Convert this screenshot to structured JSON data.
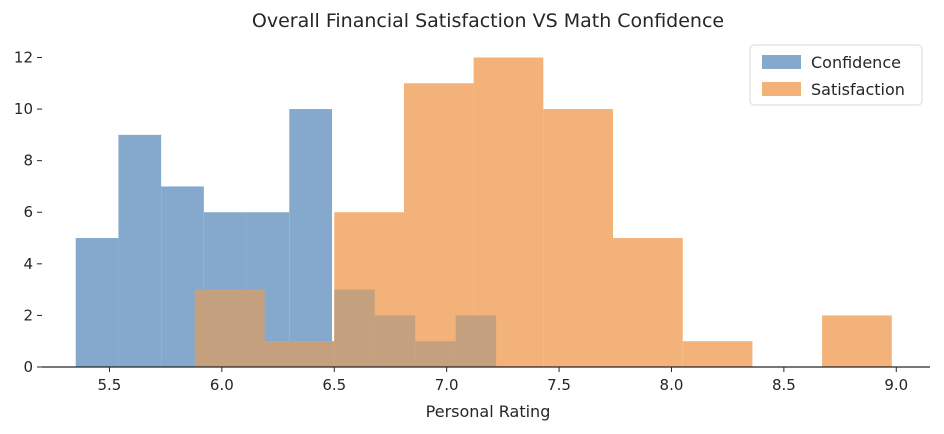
{
  "chart_data": {
    "type": "bar",
    "subtype": "histogram-overlay",
    "title": "Overall Financial Satisfaction VS Math Confidence",
    "xlabel": "Personal Rating",
    "ylabel": "",
    "xlim": [
      5.2,
      9.15
    ],
    "ylim": [
      0,
      12.6
    ],
    "xticks": [
      "5.5",
      "6.0",
      "6.5",
      "7.0",
      "7.5",
      "8.0",
      "8.5",
      "9.0"
    ],
    "yticks": [
      "0",
      "2",
      "4",
      "6",
      "8",
      "10",
      "12"
    ],
    "grid": false,
    "legend_position": "top-right",
    "series": [
      {
        "name": "Confidence",
        "color": "#84a9cd",
        "opacity": 0.85,
        "bins": [
          {
            "x0": 5.35,
            "x1": 5.54,
            "value": 5
          },
          {
            "x0": 5.54,
            "x1": 5.73,
            "value": 9
          },
          {
            "x0": 5.73,
            "x1": 5.92,
            "value": 7
          },
          {
            "x0": 5.92,
            "x1": 6.11,
            "value": 6
          },
          {
            "x0": 6.11,
            "x1": 6.3,
            "value": 6
          },
          {
            "x0": 6.3,
            "x1": 6.49,
            "value": 10
          }
        ]
      },
      {
        "name": "Satisfaction",
        "color": "#f2b27a",
        "opacity": 0.8,
        "bins": [
          {
            "x0": 5.88,
            "x1": 6.19,
            "value": 3
          },
          {
            "x0": 6.19,
            "x1": 6.5,
            "value": 1
          },
          {
            "x0": 6.5,
            "x1": 6.81,
            "value": 6
          },
          {
            "x0": 6.81,
            "x1": 7.12,
            "value": 11
          },
          {
            "x0": 7.12,
            "x1": 7.43,
            "value": 12
          },
          {
            "x0": 7.43,
            "x1": 7.74,
            "value": 10
          },
          {
            "x0": 7.74,
            "x1": 8.05,
            "value": 5
          },
          {
            "x0": 8.05,
            "x1": 8.36,
            "value": 1
          },
          {
            "x0": 8.36,
            "x1": 8.67,
            "value": 0
          },
          {
            "x0": 8.67,
            "x1": 8.98,
            "value": 2
          }
        ]
      }
    ],
    "overlap_bins": [
      {
        "x0": 5.88,
        "x1": 6.19,
        "value": 3
      },
      {
        "x0": 6.19,
        "x1": 6.5,
        "value": 1
      },
      {
        "x0": 6.5,
        "x1": 6.68,
        "value": 3
      },
      {
        "x0": 6.68,
        "x1": 6.86,
        "value": 2
      },
      {
        "x0": 6.86,
        "x1": 7.04,
        "value": 1
      },
      {
        "x0": 7.04,
        "x1": 7.22,
        "value": 2
      }
    ],
    "overlap_color": "#c4a07f"
  }
}
